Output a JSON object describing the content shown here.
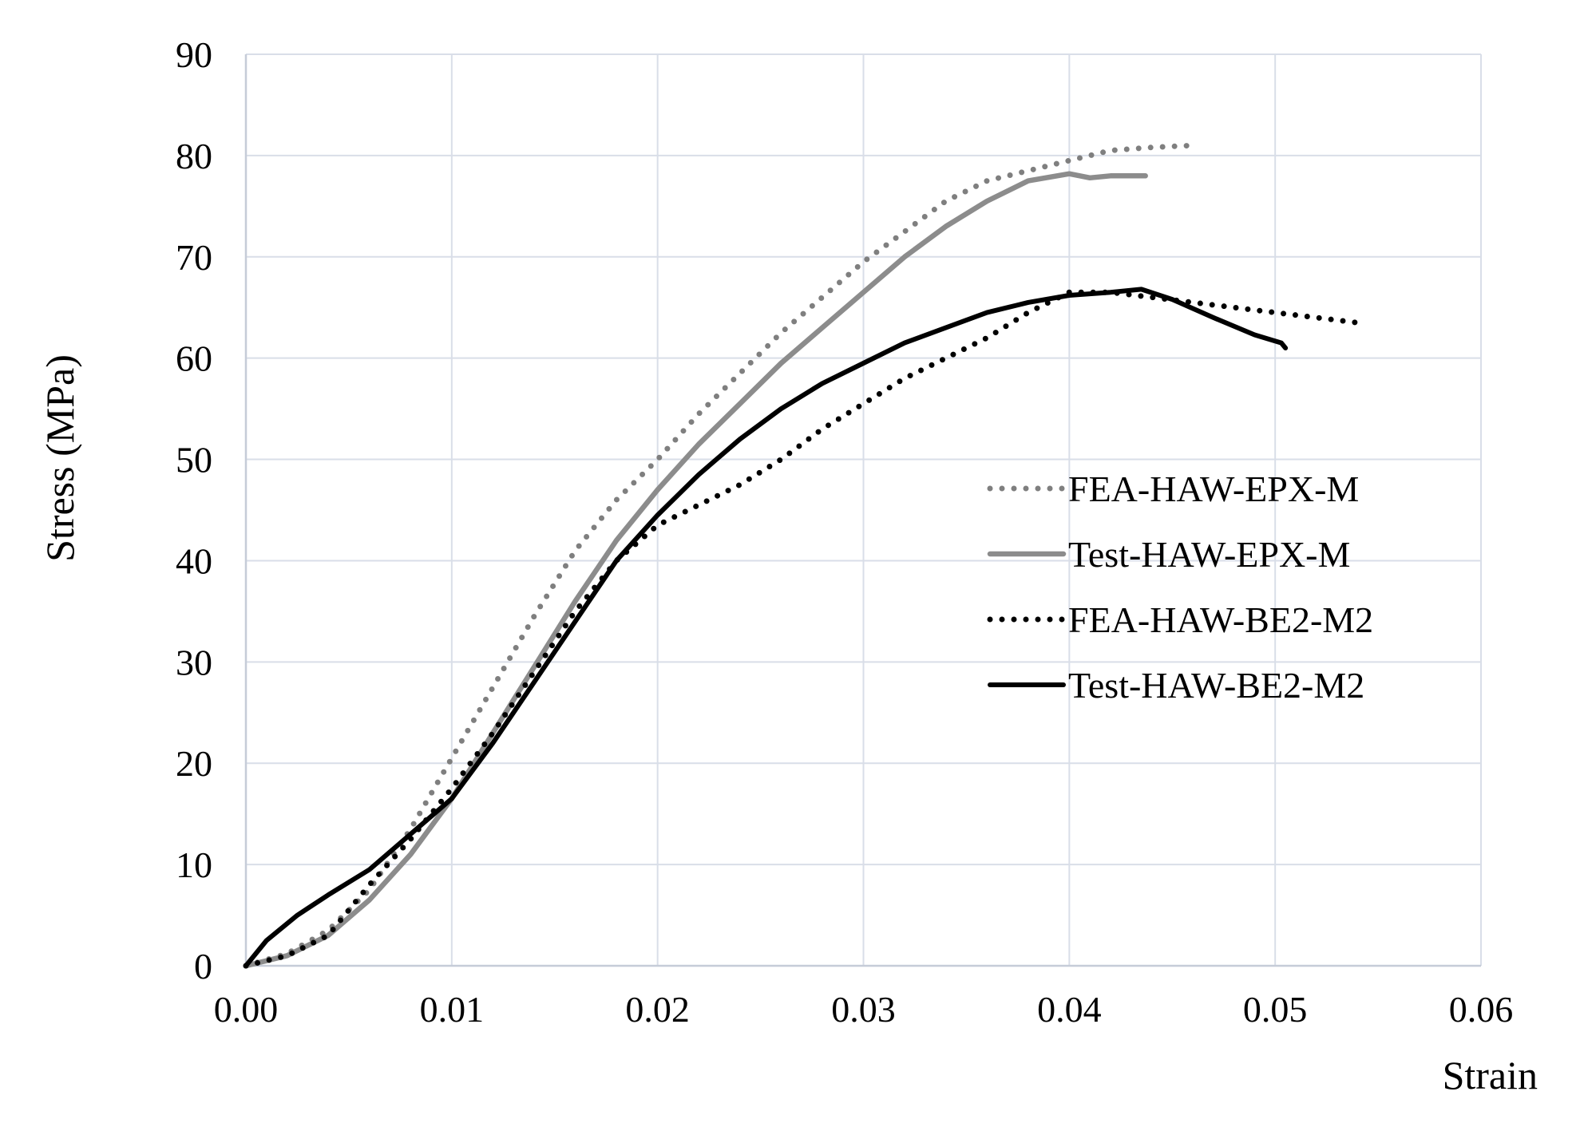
{
  "chart_data": {
    "type": "line",
    "xlabel": "Strain",
    "ylabel": "Stress  (MPa)",
    "xlim": [
      0,
      0.06
    ],
    "ylim": [
      0,
      90
    ],
    "xticks": [
      0,
      0.01,
      0.02,
      0.03,
      0.04,
      0.05,
      0.06
    ],
    "xtick_labels": [
      "0.00",
      "0.01",
      "0.02",
      "0.03",
      "0.04",
      "0.05",
      "0.06"
    ],
    "yticks": [
      0,
      10,
      20,
      30,
      40,
      50,
      60,
      70,
      80,
      90
    ],
    "ytick_labels": [
      "0",
      "10",
      "20",
      "30",
      "40",
      "50",
      "60",
      "70",
      "80",
      "90"
    ],
    "grid": true,
    "legend_position": "center-right",
    "series": [
      {
        "name": "FEA-HAW-EPX-M",
        "style": "dotted",
        "color": "#7f7f7f",
        "x": [
          0,
          0.002,
          0.004,
          0.006,
          0.008,
          0.01,
          0.012,
          0.014,
          0.016,
          0.018,
          0.02,
          0.022,
          0.024,
          0.026,
          0.028,
          0.03,
          0.032,
          0.034,
          0.036,
          0.038,
          0.04,
          0.042,
          0.044,
          0.046
        ],
        "y": [
          0,
          1.2,
          3.5,
          7.5,
          13.5,
          20.5,
          27.5,
          34.5,
          41,
          46,
          50,
          54.5,
          58.5,
          62.5,
          66,
          69.5,
          72.5,
          75.5,
          77.5,
          78.5,
          79.5,
          80.5,
          80.8,
          81
        ]
      },
      {
        "name": "Test-HAW-EPX-M",
        "style": "solid",
        "color": "#8c8c8c",
        "x": [
          0,
          0.002,
          0.004,
          0.006,
          0.008,
          0.01,
          0.012,
          0.014,
          0.016,
          0.018,
          0.02,
          0.022,
          0.024,
          0.026,
          0.028,
          0.03,
          0.032,
          0.034,
          0.036,
          0.038,
          0.04,
          0.041,
          0.042,
          0.0437
        ],
        "y": [
          0,
          1,
          3,
          6.5,
          11,
          16.5,
          23,
          29.5,
          36,
          42,
          47,
          51.5,
          55.5,
          59.5,
          63,
          66.5,
          70,
          73,
          75.5,
          77.5,
          78.2,
          77.8,
          78,
          78
        ]
      },
      {
        "name": "FEA-HAW-BE2-M2",
        "style": "dotted",
        "color": "#000000",
        "x": [
          0,
          0.002,
          0.004,
          0.006,
          0.008,
          0.01,
          0.012,
          0.014,
          0.016,
          0.018,
          0.02,
          0.022,
          0.024,
          0.026,
          0.028,
          0.03,
          0.032,
          0.034,
          0.036,
          0.038,
          0.04,
          0.042,
          0.044,
          0.046,
          0.048,
          0.05,
          0.052,
          0.054
        ],
        "y": [
          0,
          1,
          3,
          8,
          12.5,
          17.5,
          23,
          29,
          35,
          40,
          43.5,
          45.5,
          47.5,
          50,
          53,
          55.5,
          58,
          60,
          62,
          64.5,
          66.5,
          66.5,
          66,
          65.5,
          65,
          64.5,
          64,
          63.5
        ]
      },
      {
        "name": "Test-HAW-BE2-M2",
        "style": "solid",
        "color": "#000000",
        "x": [
          0,
          0.001,
          0.0025,
          0.004,
          0.006,
          0.008,
          0.01,
          0.012,
          0.014,
          0.016,
          0.018,
          0.02,
          0.022,
          0.024,
          0.026,
          0.028,
          0.03,
          0.032,
          0.034,
          0.036,
          0.038,
          0.04,
          0.042,
          0.0435,
          0.045,
          0.047,
          0.049,
          0.0503,
          0.0505
        ],
        "y": [
          0,
          2.5,
          5,
          7,
          9.5,
          13,
          16.5,
          22,
          28,
          34,
          40,
          44.5,
          48.5,
          52,
          55,
          57.5,
          59.5,
          61.5,
          63,
          64.5,
          65.5,
          66.2,
          66.5,
          66.8,
          65.8,
          64,
          62.3,
          61.5,
          61
        ]
      }
    ]
  }
}
